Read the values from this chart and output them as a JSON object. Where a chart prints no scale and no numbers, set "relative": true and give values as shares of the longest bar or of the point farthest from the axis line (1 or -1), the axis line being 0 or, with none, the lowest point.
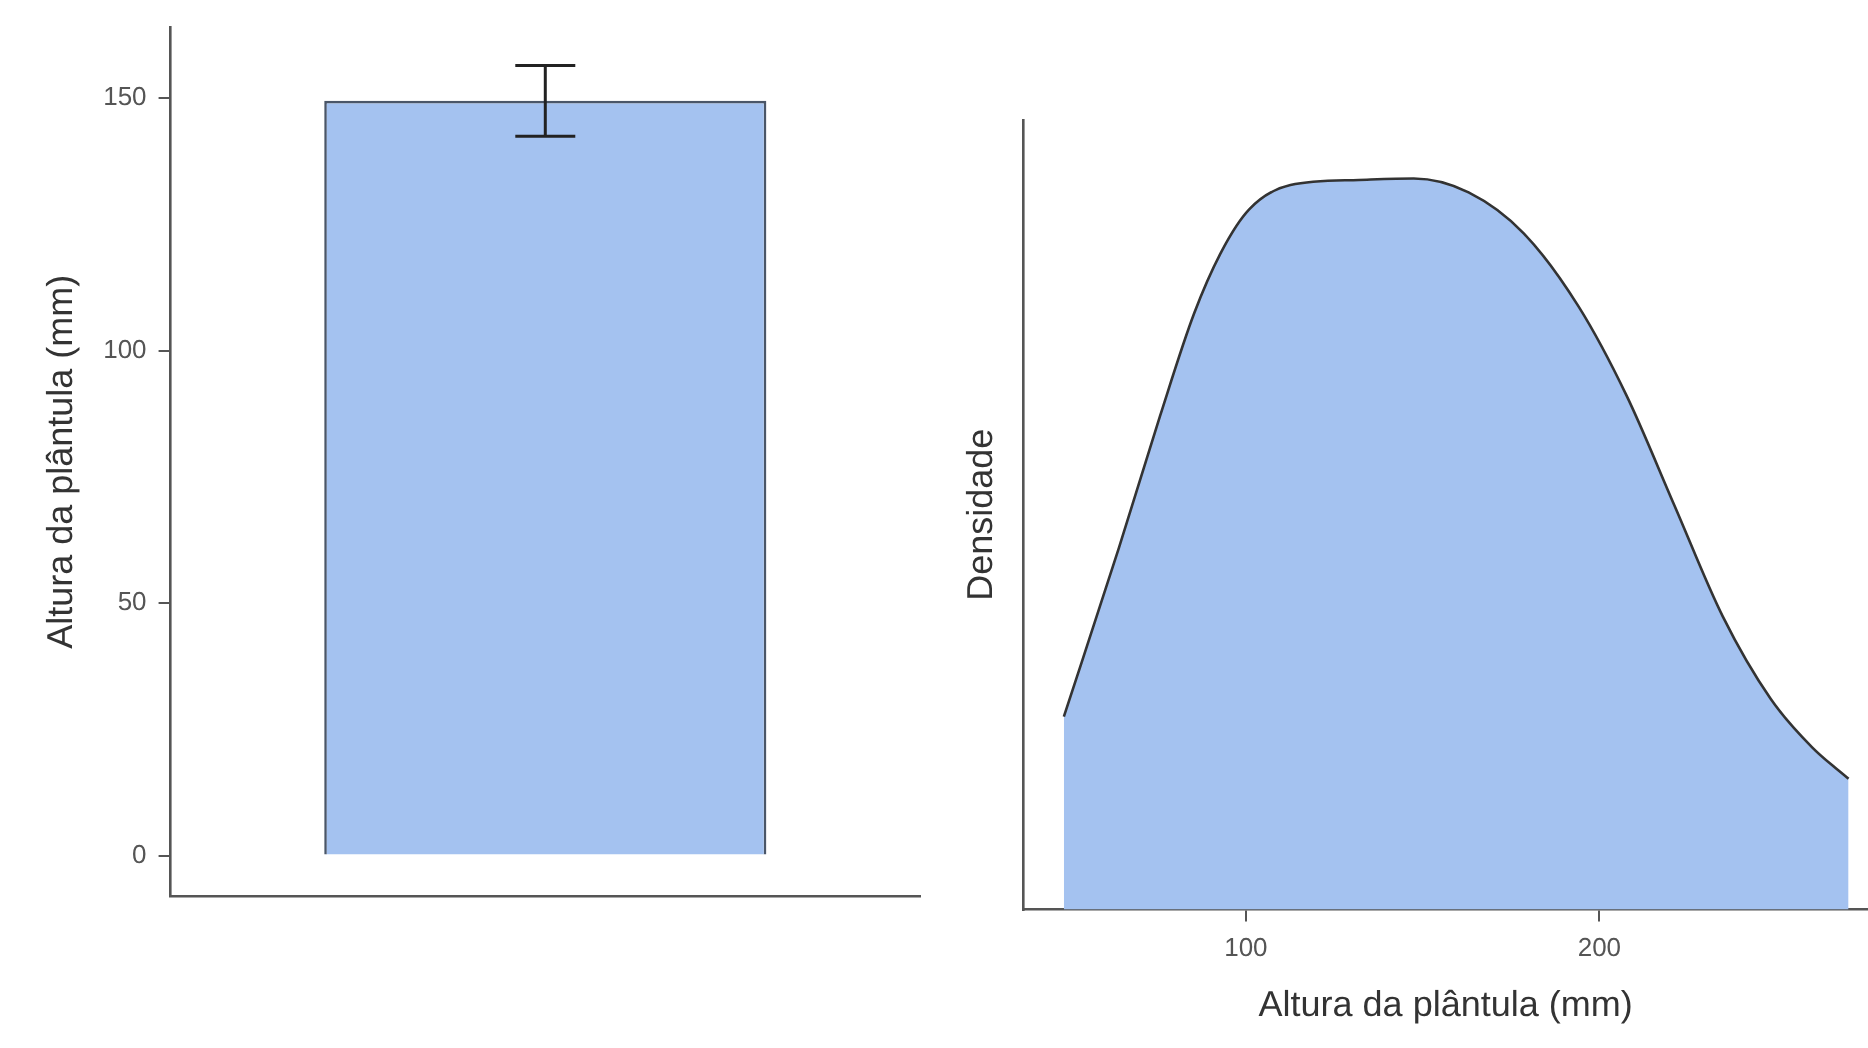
{
  "chart_data": [
    {
      "type": "bar",
      "ylabel": "Altura da plântula (mm)",
      "categories": [
        null
      ],
      "values": [
        149.5
      ],
      "errors": [
        7
      ],
      "color": "#a4c2f0",
      "ylim": [
        -8,
        164
      ],
      "yticks": [
        0,
        50,
        100,
        150
      ]
    },
    {
      "type": "area",
      "xlabel": "Altura da plântula (mm)",
      "ylabel": "Densidade",
      "relative": true,
      "color": "#a4c2f0",
      "xlim": [
        37,
        276
      ],
      "xticks": [
        100,
        200
      ],
      "x": [
        48.5,
        64.1,
        75.7,
        85.4,
        93.2,
        101,
        112.6,
        132,
        147.5,
        163,
        178.6,
        194.1,
        207.7,
        221.3,
        234.9,
        248.5,
        260.2,
        270.5
      ],
      "values": [
        0.264,
        0.495,
        0.675,
        0.816,
        0.901,
        0.958,
        0.991,
        0.998,
        1,
        0.981,
        0.925,
        0.825,
        0.703,
        0.552,
        0.401,
        0.288,
        0.222,
        0.179
      ]
    }
  ]
}
